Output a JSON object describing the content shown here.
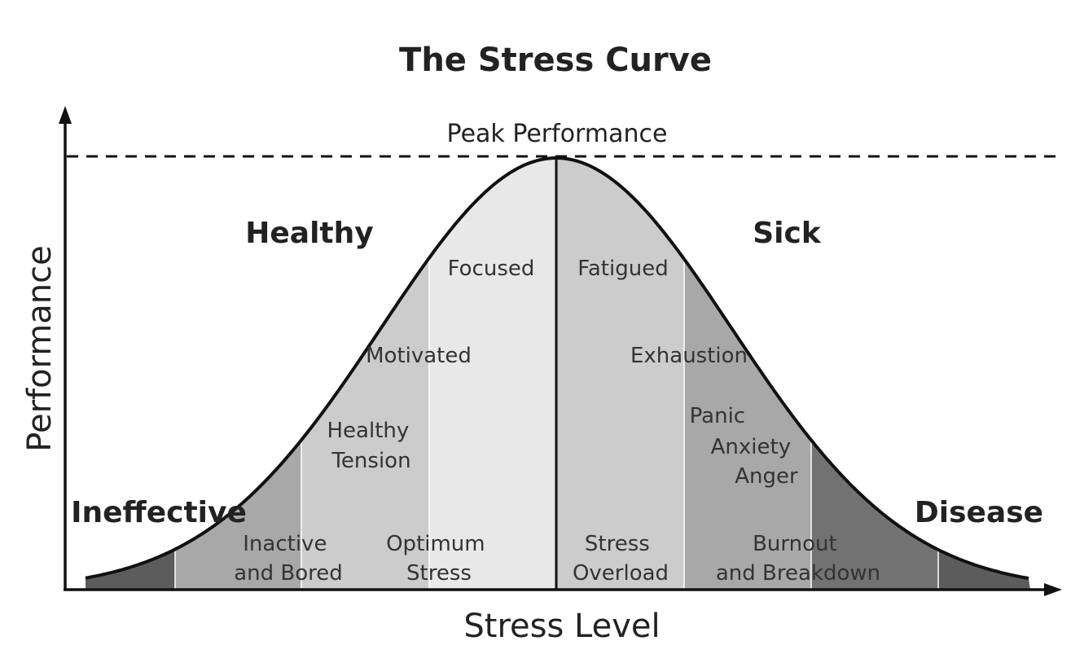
{
  "title": "The Stress Curve",
  "axes": {
    "x_label": "Stress Level",
    "y_label": "Performance"
  },
  "peak_label": "Peak Performance",
  "zone_headings": {
    "healthy": "Healthy",
    "sick": "Sick",
    "ineffective": "Ineffective",
    "disease": "Disease"
  },
  "curve_states": {
    "focused": "Focused",
    "fatigued": "Fatigued",
    "motivated": "Motivated",
    "exhaustion": "Exhaustion",
    "healthy_tension": [
      "Healthy",
      "Tension"
    ],
    "panic_anxiety_anger": [
      "Panic",
      "Anxiety",
      "Anger"
    ]
  },
  "bottom_zones": {
    "inactive_bored": [
      "Inactive",
      "and Bored"
    ],
    "optimum_stress": [
      "Optimum",
      "Stress"
    ],
    "stress_overload": [
      "Stress",
      "Overload"
    ],
    "burnout_breakdown": [
      "Burnout",
      "and Breakdown"
    ]
  },
  "band_colors": [
    "#5c5c5c",
    "#a8a8a8",
    "#cccccc",
    "#e8e8e8",
    "#cccccc",
    "#a8a8a8",
    "#727272",
    "#5c5c5c"
  ]
}
